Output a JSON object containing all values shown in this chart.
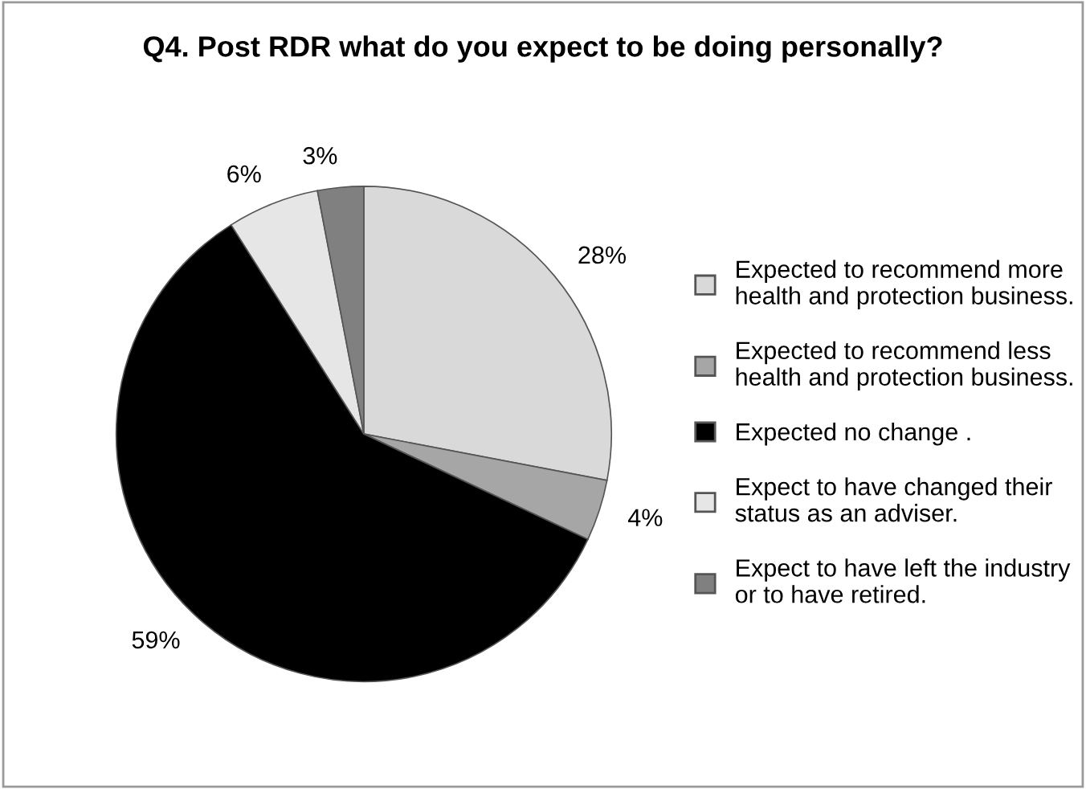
{
  "chart_data": {
    "type": "pie",
    "title": "Q4. Post RDR what do you expect to be doing personally?",
    "categories": [
      "Expected to recommend more\nhealth and protection business.",
      "Expected to recommend less\nhealth and protection business.",
      "Expected no change .",
      "Expect to have changed their\nstatus as an adviser.",
      "Expect to have left the industry\nor to have retired."
    ],
    "values": [
      28,
      4,
      59,
      6,
      3
    ],
    "value_labels": [
      "28%",
      "4%",
      "59%",
      "6%",
      "3%"
    ],
    "colors": [
      "#d9d9d9",
      "#a6a6a6",
      "#000000",
      "#e6e6e6",
      "#808080"
    ],
    "legend": "right"
  }
}
